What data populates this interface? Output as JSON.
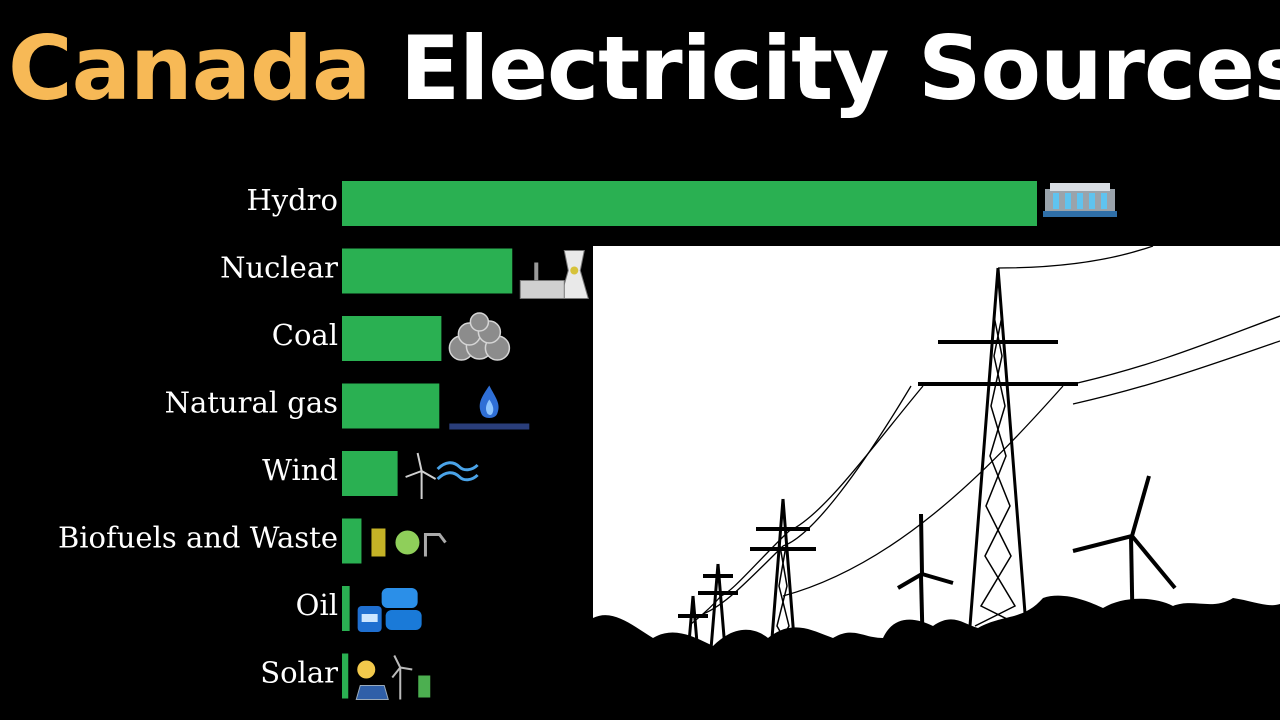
{
  "title": {
    "accent": "Canada",
    "main": "Electricity Sources"
  },
  "colors": {
    "accent": "#f7b956",
    "bar": "#2ab052",
    "background": "#000000",
    "title_text": "#ffffff"
  },
  "chart_data": {
    "type": "bar",
    "orientation": "horizontal",
    "categories": [
      "Hydro",
      "Nuclear",
      "Coal",
      "Natural gas",
      "Wind",
      "Biofuels and Waste",
      "Oil",
      "Solar"
    ],
    "values": [
      100,
      24.5,
      14.3,
      14,
      8,
      2.8,
      1.1,
      0.9
    ],
    "icons": [
      "hydro-dam-icon",
      "nuclear-plant-icon",
      "coal-icon",
      "natural-gas-icon",
      "wind-turbine-icon",
      "biofuel-icon",
      "oil-barrels-icon",
      "solar-panel-icon"
    ],
    "grid": false
  }
}
